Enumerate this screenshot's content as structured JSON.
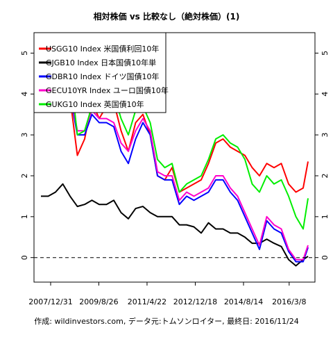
{
  "chart_data": {
    "type": "line",
    "title": "相対株価 vs 比較なし（絶対株価）(1)",
    "caption": "作成: wildinvestors.com, データ元:トムソンロイター, 最終日: 2016/11/24",
    "xlabel": "",
    "ylabel": "",
    "x_tick_labels": [
      "2007/12/31",
      "2009/8/26",
      "2011/4/22",
      "2012/12/18",
      "2014/8/14",
      "2016/3/8"
    ],
    "x_range": [
      "2007/09",
      "2016/11"
    ],
    "ylim": [
      -0.6,
      5.5
    ],
    "y_ticks": [
      0,
      1,
      2,
      3,
      4,
      5
    ],
    "y_tick_labels": [
      "0",
      "1",
      "2",
      "3",
      "4",
      "5"
    ],
    "grid": false,
    "reference_line": {
      "y": 0,
      "style": "dashed"
    },
    "legend_placement": "top-left",
    "x": [
      "2007/09",
      "2007/12",
      "2008/03",
      "2008/06",
      "2008/09",
      "2008/12",
      "2009/03",
      "2009/06",
      "2009/09",
      "2009/12",
      "2010/03",
      "2010/06",
      "2010/09",
      "2010/12",
      "2011/03",
      "2011/06",
      "2011/09",
      "2011/12",
      "2012/03",
      "2012/06",
      "2012/09",
      "2012/12",
      "2013/03",
      "2013/06",
      "2013/09",
      "2013/12",
      "2014/03",
      "2014/06",
      "2014/09",
      "2014/12",
      "2015/03",
      "2015/06",
      "2015/09",
      "2015/12",
      "2016/03",
      "2016/06",
      "2016/09",
      "2016/11"
    ],
    "series": [
      {
        "name": "USGG10 Index 米国債利回10年",
        "color": "#ff0000",
        "values": [
          4.6,
          4.0,
          3.6,
          4.0,
          3.9,
          2.5,
          2.9,
          3.8,
          3.4,
          3.7,
          3.8,
          3.1,
          2.6,
          3.3,
          3.5,
          3.0,
          2.0,
          1.9,
          2.2,
          1.6,
          1.7,
          1.8,
          1.9,
          2.3,
          2.8,
          2.9,
          2.7,
          2.6,
          2.5,
          2.2,
          2.0,
          2.3,
          2.2,
          2.3,
          1.8,
          1.6,
          1.7,
          2.35
        ]
      },
      {
        "name": "GJGB10 Index 日本国債10年単",
        "color": "#000000",
        "values": [
          1.5,
          1.5,
          1.6,
          1.8,
          1.5,
          1.25,
          1.3,
          1.4,
          1.3,
          1.3,
          1.4,
          1.1,
          0.95,
          1.2,
          1.25,
          1.1,
          1.0,
          1.0,
          1.0,
          0.8,
          0.8,
          0.75,
          0.6,
          0.85,
          0.7,
          0.7,
          0.6,
          0.6,
          0.5,
          0.35,
          0.35,
          0.45,
          0.35,
          0.27,
          -0.05,
          -0.2,
          -0.05,
          0.03
        ]
      },
      {
        "name": "GDBR10 Index ドイツ国債10年",
        "color": "#0000ff",
        "values": [
          4.3,
          4.3,
          4.0,
          4.5,
          4.0,
          3.0,
          3.0,
          3.5,
          3.3,
          3.3,
          3.2,
          2.6,
          2.3,
          2.9,
          3.3,
          3.0,
          2.0,
          1.9,
          1.9,
          1.3,
          1.5,
          1.4,
          1.5,
          1.6,
          1.9,
          1.9,
          1.6,
          1.4,
          1.0,
          0.6,
          0.2,
          0.9,
          0.7,
          0.6,
          0.15,
          -0.1,
          -0.1,
          0.25
        ]
      },
      {
        "name": "GECU10YR Index ユーロ国債10年",
        "color": "#ff00cc",
        "values": [
          4.4,
          4.3,
          4.1,
          4.6,
          4.1,
          3.1,
          3.1,
          3.6,
          3.4,
          3.4,
          3.3,
          2.8,
          2.6,
          3.1,
          3.4,
          3.1,
          2.1,
          2.0,
          2.0,
          1.4,
          1.6,
          1.5,
          1.6,
          1.7,
          2.0,
          2.0,
          1.7,
          1.5,
          1.1,
          0.7,
          0.3,
          1.0,
          0.8,
          0.7,
          0.2,
          -0.05,
          -0.05,
          0.3
        ]
      },
      {
        "name": "GUKG10 Index 英国債10年",
        "color": "#00ee00",
        "values": [
          5.0,
          4.6,
          4.5,
          5.2,
          4.6,
          3.0,
          3.1,
          3.7,
          3.7,
          3.9,
          4.0,
          3.4,
          3.0,
          3.6,
          3.7,
          3.3,
          2.4,
          2.2,
          2.3,
          1.6,
          1.8,
          1.9,
          2.0,
          2.4,
          2.9,
          3.0,
          2.8,
          2.7,
          2.4,
          1.8,
          1.6,
          2.0,
          1.8,
          1.9,
          1.5,
          1.0,
          0.7,
          1.45
        ]
      }
    ]
  }
}
